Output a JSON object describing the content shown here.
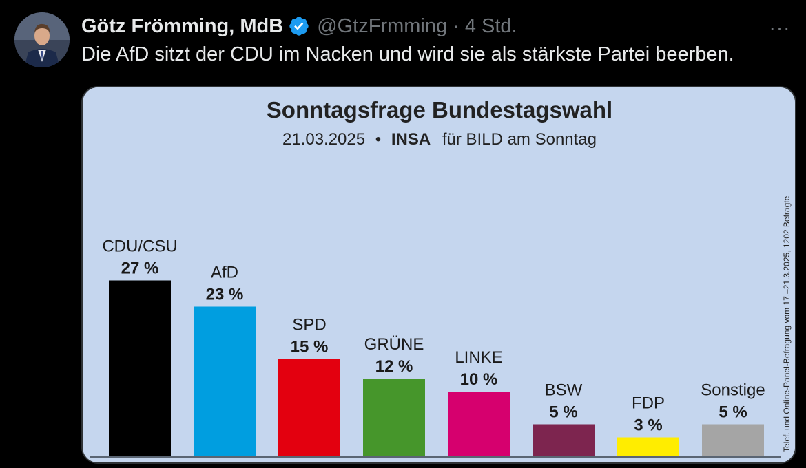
{
  "tweet": {
    "author_name": "Götz Frömming, MdB",
    "handle": "@GtzFrmming",
    "separator": "·",
    "time": "4 Std.",
    "more_label": "···",
    "text": "Die AfD sitzt der CDU im Nacken und wird sie als stärkste Partei beerben.",
    "icons": {
      "avatar": "avatar-photo",
      "verified": "verified-badge-icon",
      "more": "more-options-icon"
    },
    "colors": {
      "background": "#000000",
      "primary_text": "#e7e9ea",
      "secondary_text": "#71767b",
      "verified": "#1d9bf0"
    }
  },
  "chart_data": {
    "type": "bar",
    "title": "Sonntagsfrage Bundestagswahl",
    "subtitle_date": "21.03.2025",
    "subtitle_bullet": "•",
    "subtitle_institute": "INSA",
    "subtitle_client": "für BILD am Sonntag",
    "source_note": "Telef. und Online-Panel-Befragung vom 17.–21.3.2025, 1202 Befragte",
    "categories": [
      "CDU/CSU",
      "AfD",
      "SPD",
      "GRÜNE",
      "LINKE",
      "BSW",
      "FDP",
      "Sonstige"
    ],
    "values": [
      27,
      23,
      15,
      12,
      10,
      5,
      3,
      5
    ],
    "value_labels": [
      "27 %",
      "23 %",
      "15 %",
      "12 %",
      "10 %",
      "5 %",
      "3 %",
      "5 %"
    ],
    "colors": [
      "#000000",
      "#009ee0",
      "#e3000f",
      "#46962b",
      "#d6006e",
      "#7d254f",
      "#ffed00",
      "#a5a5a5"
    ],
    "background": "#c5d6ee",
    "grid": false,
    "legend": "none"
  }
}
